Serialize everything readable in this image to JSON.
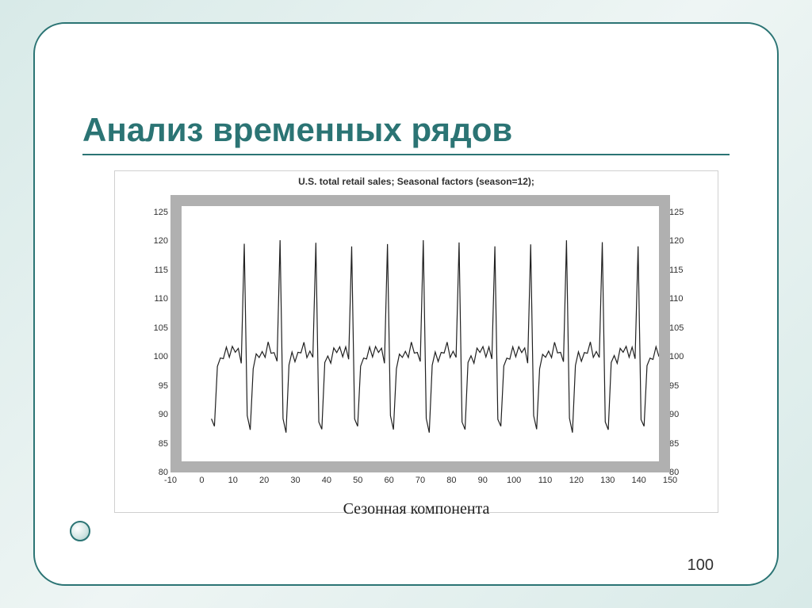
{
  "slide": {
    "title": "Анализ временных рядов",
    "page_number": "100",
    "frame_border_color": "#2b7474",
    "title_color": "#2b7474",
    "background_gradient": [
      "#d8eae8",
      "#eef5f4",
      "#d8eae8"
    ]
  },
  "chart": {
    "type": "line",
    "title": "U.S. total retail sales; Seasonal factors (season=12);",
    "caption": "Сезонная компонента",
    "title_fontsize": 12,
    "caption_fontsize": 20,
    "caption_font": "Times New Roman",
    "background_color": "#ffffff",
    "frame_border_color": "#b0b0b0",
    "frame_border_width": 14,
    "grid_texture_color": "#bcbcbc",
    "line_color": "#202020",
    "line_width": 1.2,
    "xlim": [
      -10,
      150
    ],
    "ylim": [
      80,
      128
    ],
    "x_ticks": [
      -10,
      0,
      10,
      20,
      30,
      40,
      50,
      60,
      70,
      80,
      90,
      100,
      110,
      120,
      130,
      140,
      150
    ],
    "y_ticks": [
      80,
      85,
      90,
      95,
      100,
      105,
      110,
      115,
      120,
      125
    ],
    "tick_fontsize": 11,
    "tick_color": "#303030",
    "seasonal_pattern_y": [
      88,
      86,
      98,
      100,
      99,
      101,
      100,
      102,
      100,
      101,
      99,
      121
    ],
    "period": 12,
    "n_periods": 13,
    "x_start": 0
  }
}
